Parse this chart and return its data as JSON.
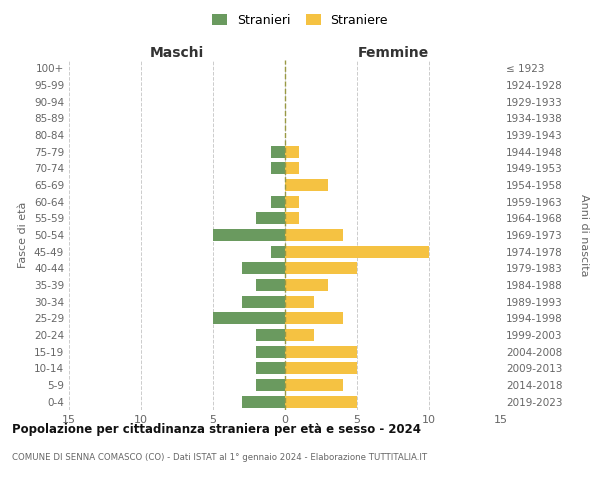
{
  "age_groups": [
    "100+",
    "95-99",
    "90-94",
    "85-89",
    "80-84",
    "75-79",
    "70-74",
    "65-69",
    "60-64",
    "55-59",
    "50-54",
    "45-49",
    "40-44",
    "35-39",
    "30-34",
    "25-29",
    "20-24",
    "15-19",
    "10-14",
    "5-9",
    "0-4"
  ],
  "birth_years": [
    "≤ 1923",
    "1924-1928",
    "1929-1933",
    "1934-1938",
    "1939-1943",
    "1944-1948",
    "1949-1953",
    "1954-1958",
    "1959-1963",
    "1964-1968",
    "1969-1973",
    "1974-1978",
    "1979-1983",
    "1984-1988",
    "1989-1993",
    "1994-1998",
    "1999-2003",
    "2004-2008",
    "2009-2013",
    "2014-2018",
    "2019-2023"
  ],
  "maschi": [
    0,
    0,
    0,
    0,
    0,
    1,
    1,
    0,
    1,
    2,
    5,
    1,
    3,
    2,
    3,
    5,
    2,
    2,
    2,
    2,
    3
  ],
  "femmine": [
    0,
    0,
    0,
    0,
    0,
    1,
    1,
    3,
    1,
    1,
    4,
    10,
    5,
    3,
    2,
    4,
    2,
    5,
    5,
    4,
    5
  ],
  "color_maschi": "#6a9a5f",
  "color_femmine": "#f5c242",
  "title": "Popolazione per cittadinanza straniera per età e sesso - 2024",
  "subtitle": "COMUNE DI SENNA COMASCO (CO) - Dati ISTAT al 1° gennaio 2024 - Elaborazione TUTTITALIA.IT",
  "ylabel_left": "Fasce di età",
  "ylabel_right": "Anni di nascita",
  "header_left": "Maschi",
  "header_right": "Femmine",
  "legend_stranieri": "Stranieri",
  "legend_straniere": "Straniere",
  "xlim": 15,
  "background_color": "#ffffff"
}
